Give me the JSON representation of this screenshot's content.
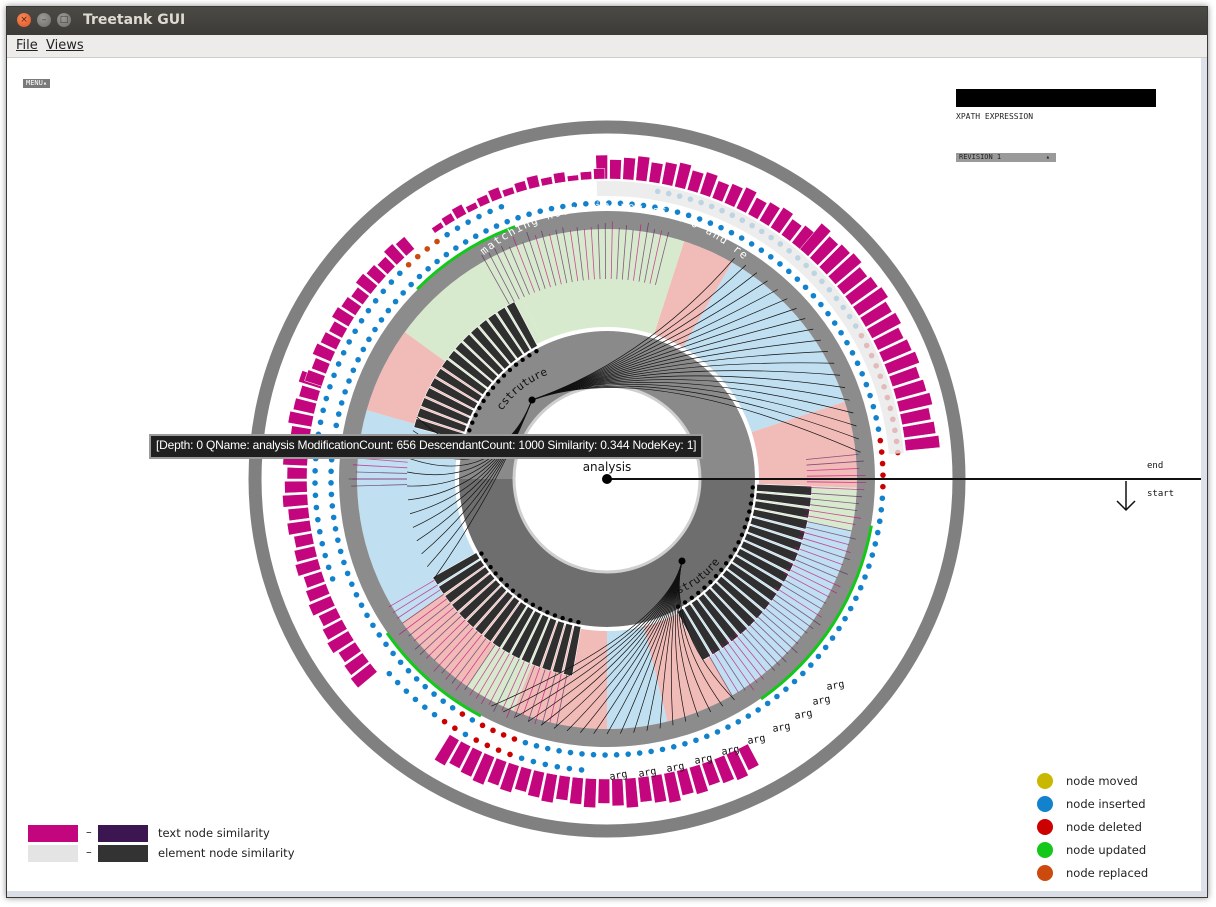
{
  "window": {
    "title": "Treetank GUI",
    "close_glyph": "×",
    "min_glyph": "–",
    "max_glyph": "□"
  },
  "menubar": {
    "file": "File",
    "views": "Views"
  },
  "controls": {
    "menu_button": "MENU▴",
    "xpath_label": "XPATH EXPRESSION",
    "revision_value": "REVISION 1",
    "revision_arrow": "▴"
  },
  "viz": {
    "outer_ring_label": "changed nodes in revision 1 from revision 0",
    "inner_ring_label": "matching nodes in revision 0 and revision 1",
    "root_label": "analysis",
    "child_label_1": "cstruture",
    "child_label_2": "fstruture",
    "arg_label": "arg",
    "end_label": "end",
    "start_label": "start",
    "tooltip": "[Depth: 0 QName: analysis ModificationCount: 656 DescendantCount: 1000 Similarity: 0.344 NodeKey: 1]"
  },
  "similarity_legend": {
    "dash": "–",
    "text_node": "text node similarity",
    "element_node": "element node similarity"
  },
  "change_legend": [
    {
      "label": "node moved",
      "color": "#c8b800"
    },
    {
      "label": "node inserted",
      "color": "#1382cc"
    },
    {
      "label": "node deleted",
      "color": "#cc0000"
    },
    {
      "label": "node updated",
      "color": "#13c81a"
    },
    {
      "label": "node replaced",
      "color": "#cc4a0e"
    }
  ],
  "colors": {
    "magenta": "#c4067e",
    "dark_purple": "#3c1650",
    "light_gray": "#e4e4e4",
    "dark_gray": "#333333",
    "ring_gray": "#808080",
    "light_blue": "#b9dcee",
    "pink": "#f0b4b0",
    "light_green": "#d4e8c8"
  }
}
